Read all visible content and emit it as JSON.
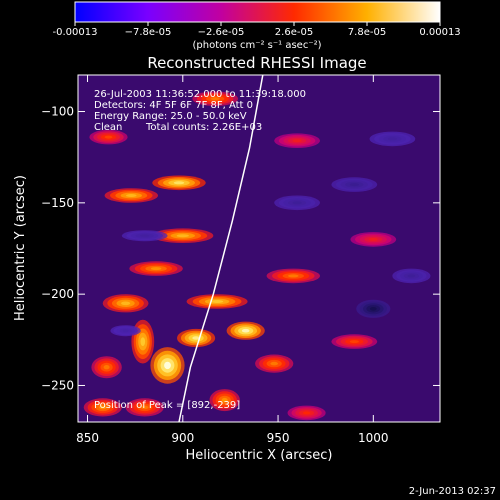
{
  "chart_data": {
    "type": "heatmap",
    "title": "Reconstructed RHESSI Image",
    "xlabel": "Heliocentric X (arcsec)",
    "ylabel": "Heliocentric Y (arcsec)",
    "xlim": [
      845,
      1035
    ],
    "ylim": [
      -270,
      -80
    ],
    "xticks": [
      850,
      900,
      950,
      1000
    ],
    "yticks": [
      -100,
      -150,
      -200,
      -250
    ],
    "xtick_labels": [
      "850",
      "900",
      "950",
      "1000"
    ],
    "ytick_labels": [
      "−100",
      "−150",
      "−200",
      "−250"
    ],
    "colorbar": {
      "min": -0.00013,
      "max": 0.00013,
      "tick_labels": [
        "-0.00013",
        "−7.8e-05",
        "−2.6e-05",
        "2.6e-05",
        "7.8e-05",
        "0.00013"
      ],
      "unit_label": "(photons cm⁻² s⁻¹ asec⁻²)",
      "colors": [
        "#0000ff",
        "#7a00ff",
        "#c100a0",
        "#ff2a00",
        "#ffb000",
        "#ffffff"
      ]
    },
    "annotations": [
      "26-Jul-2003 11:36:52.000 to 11:39:18.000",
      "Detectors: 4F 5F 6F 7F 8F, Att 0",
      "Energy Range: 25.0 - 50.0 keV",
      "Clean",
      "Total counts: 2.26E+03",
      "Position of Peak = [892,-239]"
    ],
    "peak": {
      "x": 892,
      "y": -239
    },
    "limb": [
      [
        942,
        -80
      ],
      [
        935,
        -120
      ],
      [
        926,
        -160
      ],
      [
        916,
        -200
      ],
      [
        904,
        -240
      ],
      [
        898,
        -270
      ]
    ],
    "blobs": [
      {
        "x": 898,
        "y": -139,
        "sx": 14,
        "sy": 4,
        "v": 0.85
      },
      {
        "x": 873,
        "y": -146,
        "sx": 14,
        "sy": 4,
        "v": 0.7
      },
      {
        "x": 917,
        "y": -93,
        "sx": 12,
        "sy": 4,
        "v": 0.55
      },
      {
        "x": 861,
        "y": -114,
        "sx": 10,
        "sy": 4,
        "v": 0.45
      },
      {
        "x": 900,
        "y": -168,
        "sx": 16,
        "sy": 4,
        "v": 0.7
      },
      {
        "x": 886,
        "y": -186,
        "sx": 14,
        "sy": 4,
        "v": 0.6
      },
      {
        "x": 870,
        "y": -205,
        "sx": 12,
        "sy": 5,
        "v": 0.7
      },
      {
        "x": 918,
        "y": -204,
        "sx": 16,
        "sy": 4,
        "v": 0.75
      },
      {
        "x": 933,
        "y": -220,
        "sx": 10,
        "sy": 5,
        "v": 0.95
      },
      {
        "x": 907,
        "y": -224,
        "sx": 10,
        "sy": 5,
        "v": 0.9
      },
      {
        "x": 892,
        "y": -239,
        "sx": 9,
        "sy": 10,
        "v": 1.0
      },
      {
        "x": 879,
        "y": -226,
        "sx": 6,
        "sy": 12,
        "v": 0.75
      },
      {
        "x": 860,
        "y": -240,
        "sx": 8,
        "sy": 6,
        "v": 0.55
      },
      {
        "x": 858,
        "y": -262,
        "sx": 10,
        "sy": 5,
        "v": 0.6
      },
      {
        "x": 880,
        "y": -262,
        "sx": 10,
        "sy": 5,
        "v": 0.55
      },
      {
        "x": 922,
        "y": -258,
        "sx": 8,
        "sy": 6,
        "v": 0.6
      },
      {
        "x": 948,
        "y": -238,
        "sx": 10,
        "sy": 5,
        "v": 0.55
      },
      {
        "x": 958,
        "y": -190,
        "sx": 14,
        "sy": 4,
        "v": 0.55
      },
      {
        "x": 990,
        "y": -226,
        "sx": 12,
        "sy": 4,
        "v": 0.45
      },
      {
        "x": 1000,
        "y": -170,
        "sx": 12,
        "sy": 4,
        "v": 0.35
      },
      {
        "x": 960,
        "y": -116,
        "sx": 12,
        "sy": 4,
        "v": 0.35
      },
      {
        "x": 965,
        "y": -265,
        "sx": 10,
        "sy": 4,
        "v": 0.4
      },
      {
        "x": 990,
        "y": -140,
        "sx": 12,
        "sy": 4,
        "v": -0.4
      },
      {
        "x": 1000,
        "y": -208,
        "sx": 9,
        "sy": 5,
        "v": -0.85
      },
      {
        "x": 960,
        "y": -150,
        "sx": 12,
        "sy": 4,
        "v": -0.35
      },
      {
        "x": 880,
        "y": -168,
        "sx": 12,
        "sy": 3,
        "v": -0.3
      },
      {
        "x": 870,
        "y": -220,
        "sx": 8,
        "sy": 3,
        "v": -0.25
      },
      {
        "x": 1020,
        "y": -190,
        "sx": 10,
        "sy": 4,
        "v": -0.35
      },
      {
        "x": 1010,
        "y": -115,
        "sx": 12,
        "sy": 4,
        "v": -0.3
      }
    ]
  },
  "timestamp": "2-Jun-2013 02:37"
}
